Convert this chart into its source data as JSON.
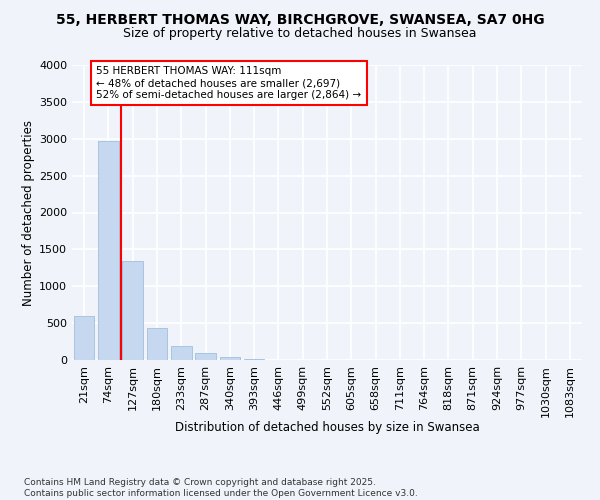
{
  "title_line1": "55, HERBERT THOMAS WAY, BIRCHGROVE, SWANSEA, SA7 0HG",
  "title_line2": "Size of property relative to detached houses in Swansea",
  "xlabel": "Distribution of detached houses by size in Swansea",
  "ylabel": "Number of detached properties",
  "categories": [
    "21sqm",
    "74sqm",
    "127sqm",
    "180sqm",
    "233sqm",
    "287sqm",
    "340sqm",
    "393sqm",
    "446sqm",
    "499sqm",
    "552sqm",
    "605sqm",
    "658sqm",
    "711sqm",
    "764sqm",
    "818sqm",
    "871sqm",
    "924sqm",
    "977sqm",
    "1030sqm",
    "1083sqm"
  ],
  "values": [
    590,
    2970,
    1340,
    430,
    185,
    95,
    40,
    15,
    0,
    0,
    0,
    0,
    0,
    0,
    0,
    0,
    0,
    0,
    0,
    0,
    0
  ],
  "bar_color": "#c5d8f0",
  "bar_edge_color": "#a8c4e0",
  "bg_color": "#f0f4fa",
  "grid_color": "#ffffff",
  "vline_x_right": 1.5,
  "vline_color": "red",
  "annotation_text": "55 HERBERT THOMAS WAY: 111sqm\n← 48% of detached houses are smaller (2,697)\n52% of semi-detached houses are larger (2,864) →",
  "annotation_box_color": "white",
  "annotation_box_edge": "red",
  "ylim": [
    0,
    4000
  ],
  "yticks": [
    0,
    500,
    1000,
    1500,
    2000,
    2500,
    3000,
    3500,
    4000
  ],
  "footnote": "Contains HM Land Registry data © Crown copyright and database right 2025.\nContains public sector information licensed under the Open Government Licence v3.0.",
  "title_fontsize": 10,
  "subtitle_fontsize": 9,
  "xlabel_fontsize": 8.5,
  "ylabel_fontsize": 8.5,
  "tick_fontsize": 8,
  "annotation_fontsize": 7.5,
  "footnote_fontsize": 6.5
}
